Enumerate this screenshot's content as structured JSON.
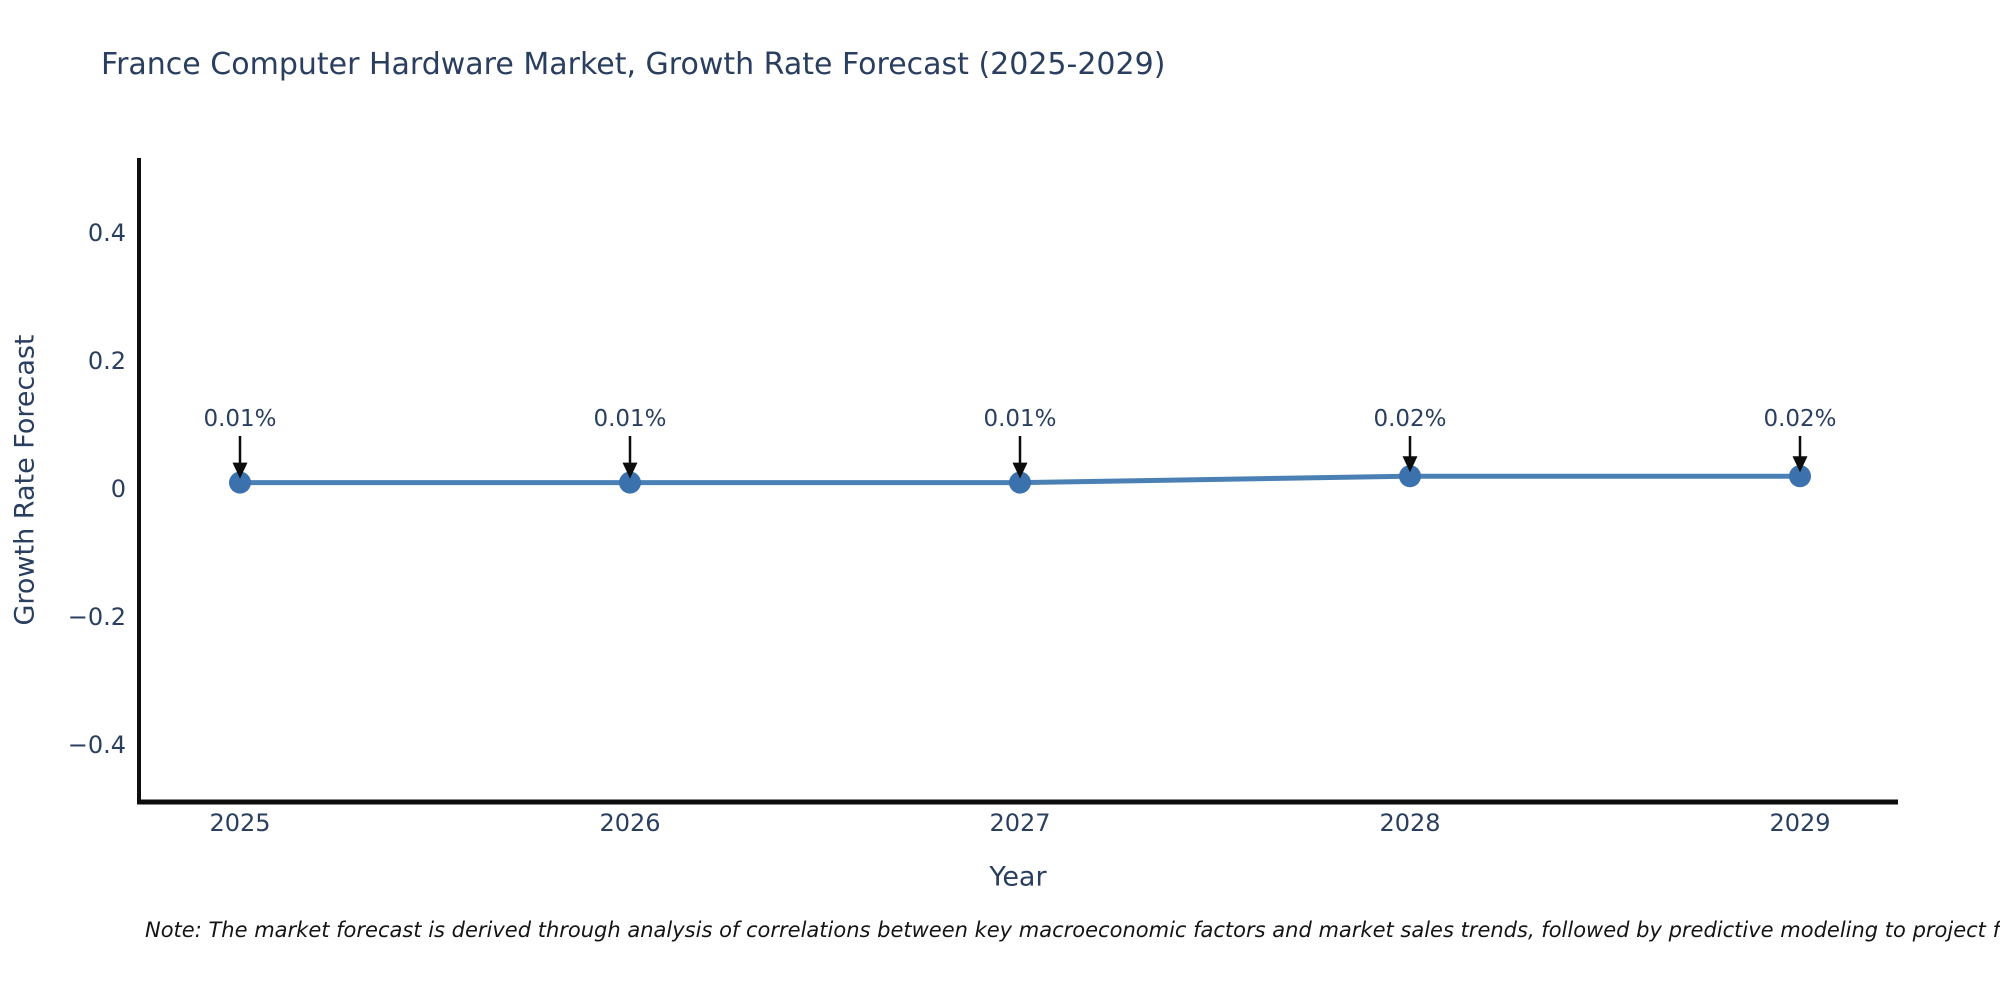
{
  "chart_data": {
    "type": "line",
    "title": "France Computer Hardware Market, Growth Rate Forecast (2025-2029)",
    "xlabel": "Year",
    "ylabel": "Growth Rate Forecast",
    "x": [
      2025,
      2026,
      2027,
      2028,
      2029
    ],
    "values": [
      0.01,
      0.01,
      0.01,
      0.02,
      0.02
    ],
    "unit": "%",
    "point_labels": [
      "0.01%",
      "0.01%",
      "0.01%",
      "0.02%",
      "0.02%"
    ],
    "ytick_values": [
      0.4,
      0.2,
      0,
      -0.2,
      -0.4
    ],
    "ytick_labels": [
      "0.4",
      "0.2",
      "0",
      "−0.2",
      "−0.4"
    ],
    "ylim": [
      -0.5,
      0.52
    ],
    "grid": false,
    "legend": "none",
    "marker_style": "circle",
    "annotation_style": "arrow-down",
    "colors": {
      "line": "#4a80b4",
      "marker": "#3b72ad",
      "arrow": "#0d0d0d",
      "axis": "#0e0e0e",
      "text": "#2a3f5f",
      "note_text": "#141414",
      "background": "#ffffff"
    }
  },
  "note": {
    "text": "Note: The market forecast is derived through analysis of correlations between key macroeconomic factors and market sales trends, followed by predictive modeling to project future sales performance."
  }
}
